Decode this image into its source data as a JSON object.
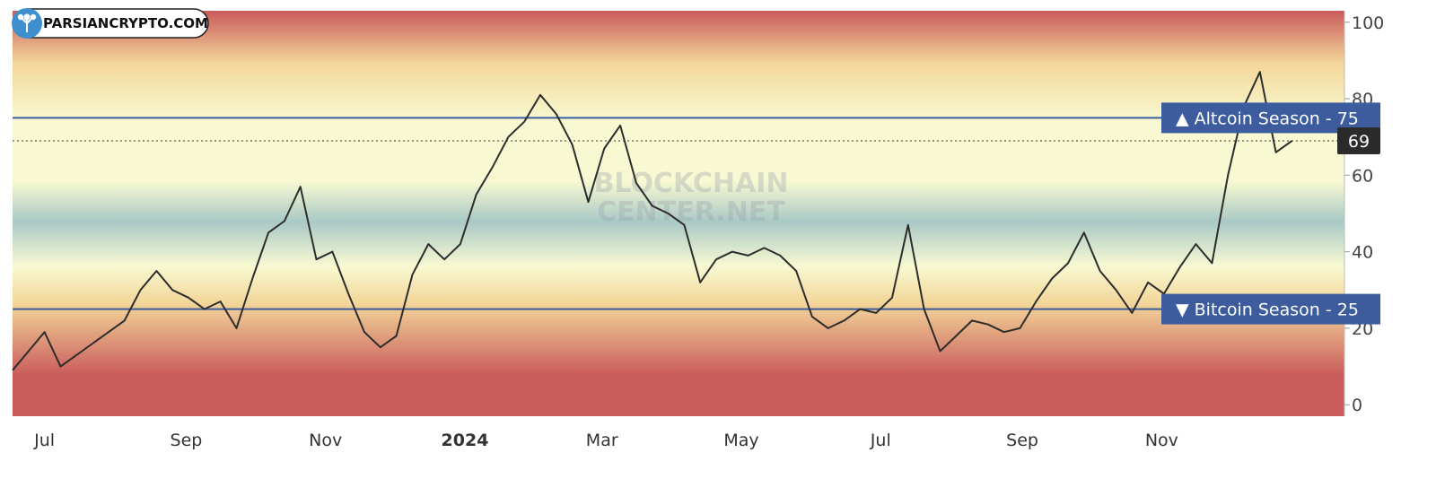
{
  "logo": {
    "label": "PARSIANCRYPTO.COM"
  },
  "watermark": {
    "line1": "BLOCKCHAIN",
    "line2": "CENTER.NET"
  },
  "colors": {
    "band_top": "#c95b5b",
    "band_mid_warm": "#f3d69a",
    "band_center": "#f8f9d2",
    "band_cool": "#a9c9c6",
    "threshold_line": "#3c5c9e",
    "tag_bg": "#3c5c9e",
    "value_tag_bg": "#2b2b2b",
    "series_line": "#2d2d2d"
  },
  "chart_data": {
    "type": "line",
    "title": "",
    "xlabel": "",
    "ylabel": "",
    "ylim": [
      -3,
      103
    ],
    "xlim": [
      "2023-06-17",
      "2025-01-20"
    ],
    "yticks": [
      0,
      20,
      40,
      60,
      80,
      100
    ],
    "xticks": [
      {
        "label": "Jul",
        "date": "2023-07-01",
        "bold": false
      },
      {
        "label": "Sep",
        "date": "2023-09-01",
        "bold": false
      },
      {
        "label": "Nov",
        "date": "2023-11-01",
        "bold": false
      },
      {
        "label": "2024",
        "date": "2024-01-01",
        "bold": true
      },
      {
        "label": "Mar",
        "date": "2024-03-01",
        "bold": false
      },
      {
        "label": "May",
        "date": "2024-05-01",
        "bold": false
      },
      {
        "label": "Jul",
        "date": "2024-07-01",
        "bold": false
      },
      {
        "label": "Sep",
        "date": "2024-09-01",
        "bold": false
      },
      {
        "label": "Nov",
        "date": "2024-11-01",
        "bold": false
      }
    ],
    "thresholds": [
      {
        "label": "▲ Altcoin Season - 75",
        "value": 75
      },
      {
        "label": "▼ Bitcoin Season - 25",
        "value": 25
      }
    ],
    "current": {
      "label": "69",
      "value": 69
    },
    "grid": false,
    "series": [
      {
        "x": [
          "2023-06-17",
          "2023-06-24",
          "2023-07-01",
          "2023-07-08",
          "2023-07-15",
          "2023-07-22",
          "2023-07-29",
          "2023-08-05",
          "2023-08-12",
          "2023-08-19",
          "2023-08-26",
          "2023-09-02",
          "2023-09-09",
          "2023-09-16",
          "2023-09-23",
          "2023-09-30",
          "2023-10-07",
          "2023-10-14",
          "2023-10-21",
          "2023-10-28",
          "2023-11-04",
          "2023-11-11",
          "2023-11-18",
          "2023-11-25",
          "2023-12-02",
          "2023-12-09",
          "2023-12-16",
          "2023-12-23",
          "2023-12-30",
          "2024-01-06",
          "2024-01-13",
          "2024-01-20",
          "2024-01-27",
          "2024-02-03",
          "2024-02-10",
          "2024-02-17",
          "2024-02-24",
          "2024-03-02",
          "2024-03-09",
          "2024-03-16",
          "2024-03-23",
          "2024-03-30",
          "2024-04-06",
          "2024-04-13",
          "2024-04-20",
          "2024-04-27",
          "2024-05-04",
          "2024-05-11",
          "2024-05-18",
          "2024-05-25",
          "2024-06-01",
          "2024-06-08",
          "2024-06-15",
          "2024-06-22",
          "2024-06-29",
          "2024-07-06",
          "2024-07-13",
          "2024-07-20",
          "2024-07-27",
          "2024-08-03",
          "2024-08-10",
          "2024-08-17",
          "2024-08-24",
          "2024-08-31",
          "2024-09-07",
          "2024-09-14",
          "2024-09-21",
          "2024-09-28",
          "2024-10-05",
          "2024-10-12",
          "2024-10-19",
          "2024-10-26",
          "2024-11-02",
          "2024-11-09",
          "2024-11-16",
          "2024-11-23",
          "2024-11-30",
          "2024-12-07",
          "2024-12-14",
          "2024-12-21",
          "2024-12-28"
        ],
        "values": [
          9,
          14,
          19,
          10,
          13,
          16,
          19,
          22,
          30,
          35,
          30,
          28,
          25,
          27,
          20,
          33,
          45,
          48,
          57,
          38,
          40,
          29,
          19,
          15,
          18,
          34,
          42,
          38,
          42,
          55,
          62,
          70,
          74,
          81,
          76,
          68,
          53,
          67,
          73,
          58,
          52,
          50,
          47,
          32,
          38,
          40,
          39,
          41,
          39,
          35,
          23,
          20,
          22,
          25,
          24,
          28,
          47,
          25,
          14,
          18,
          22,
          21,
          19,
          20,
          27,
          33,
          37,
          45,
          35,
          30,
          24,
          32,
          29,
          36,
          42,
          37,
          60,
          78,
          87,
          66,
          69
        ]
      }
    ]
  }
}
